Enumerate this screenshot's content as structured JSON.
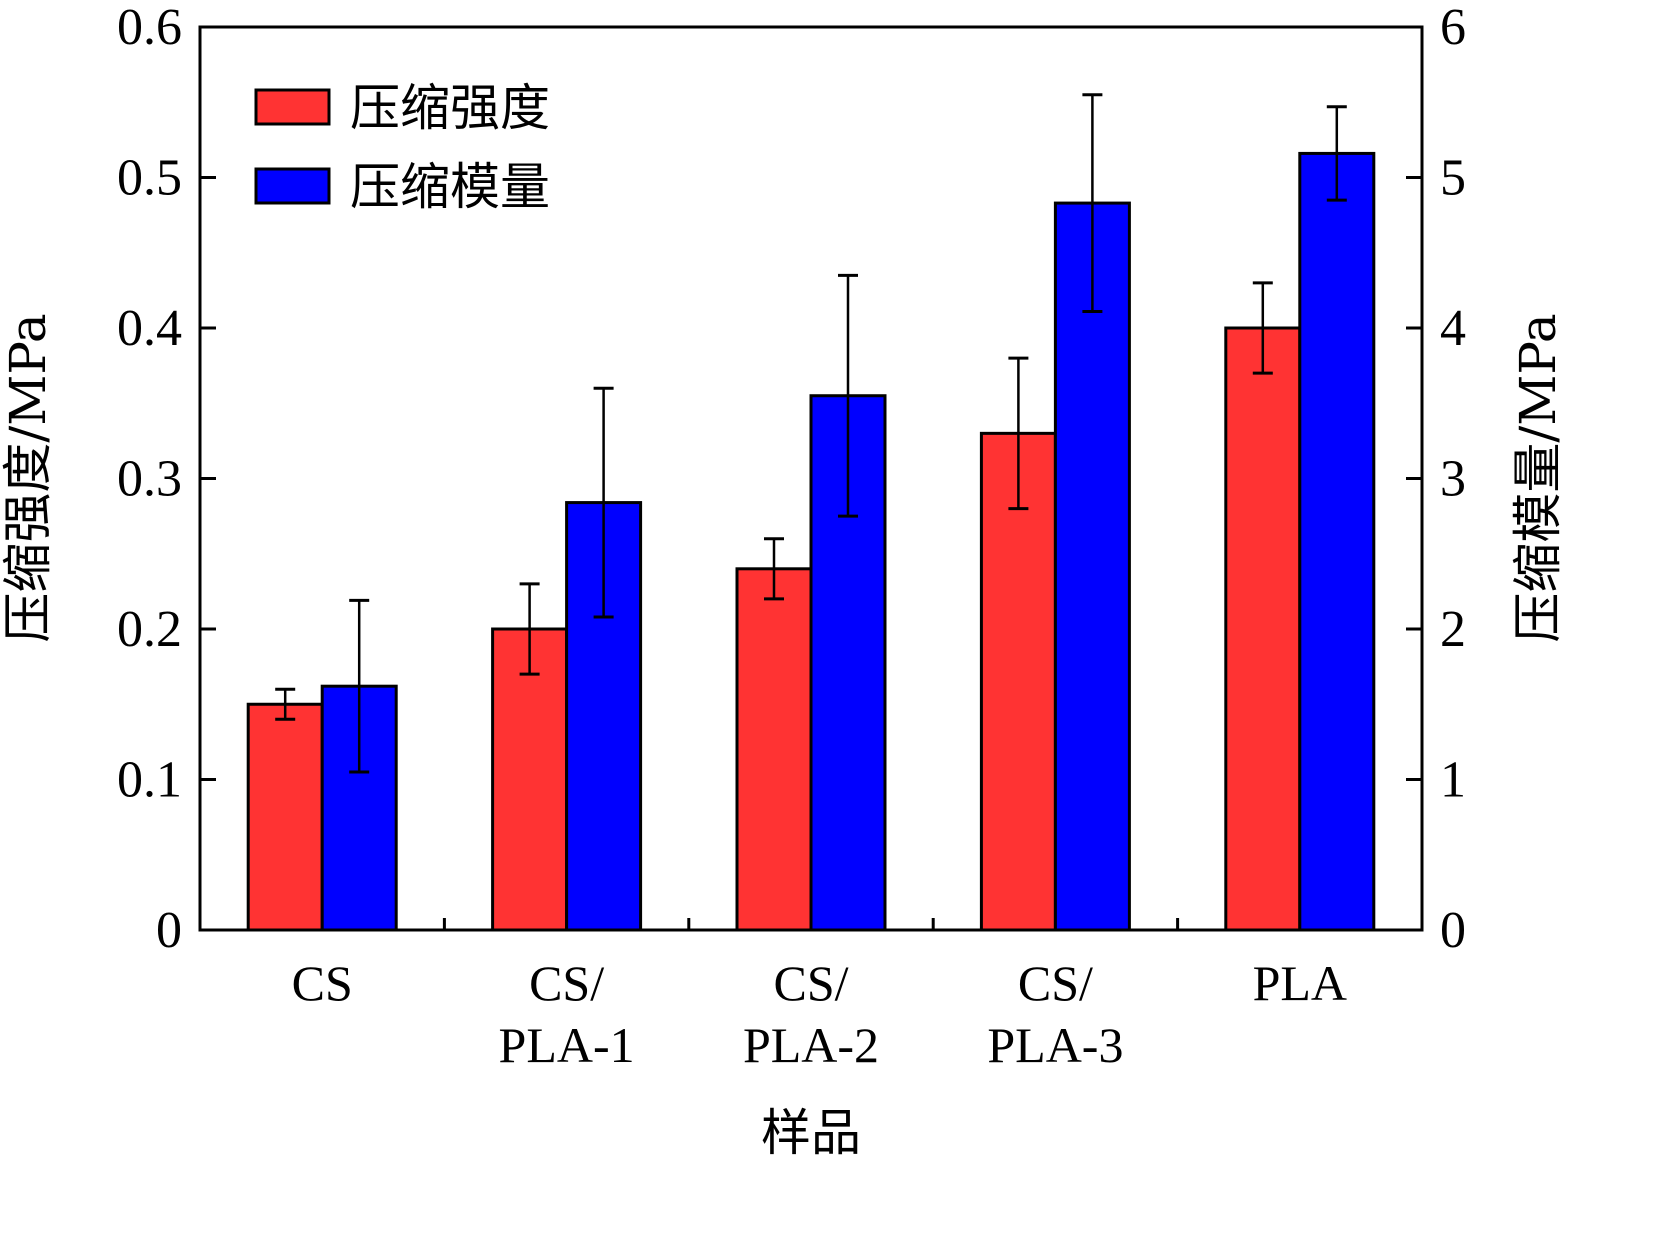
{
  "chart_data": {
    "type": "bar",
    "title": "",
    "xlabel": "样品",
    "ylabel": "压缩强度/MPa",
    "y2label": "压缩模量/MPa",
    "ylim": [
      0,
      0.6
    ],
    "y2lim": [
      0,
      6
    ],
    "yticks": [
      "0",
      "0.1",
      "0.2",
      "0.3",
      "0.4",
      "0.5",
      "0.6"
    ],
    "y2ticks": [
      "0",
      "1",
      "2",
      "3",
      "4",
      "5",
      "6"
    ],
    "categories": [
      {
        "line1": "CS",
        "line2": ""
      },
      {
        "line1": "CS/",
        "line2": "PLA-1"
      },
      {
        "line1": "CS/",
        "line2": "PLA-2"
      },
      {
        "line1": "CS/",
        "line2": "PLA-3"
      },
      {
        "line1": "PLA",
        "line2": ""
      }
    ],
    "series": [
      {
        "name": "压缩强度",
        "axis": "left",
        "color": "#ff3333",
        "values": [
          0.15,
          0.2,
          0.24,
          0.33,
          0.4
        ],
        "errors": [
          0.01,
          0.03,
          0.02,
          0.05,
          0.03
        ]
      },
      {
        "name": "压缩模量",
        "axis": "right",
        "color": "#0000ff",
        "values": [
          1.62,
          2.84,
          3.55,
          4.83,
          5.16
        ],
        "errors": [
          0.57,
          0.76,
          0.8,
          0.72,
          0.31
        ]
      }
    ],
    "legend_position": "top-left",
    "grid": false
  }
}
